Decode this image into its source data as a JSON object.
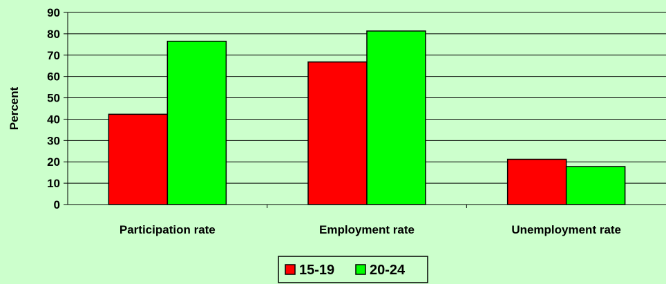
{
  "chart_data": {
    "type": "bar",
    "categories": [
      "Participation rate",
      "Employment rate",
      "Unemployment rate"
    ],
    "series": [
      {
        "name": "15-19",
        "color": "#ff0000",
        "values": [
          42.3,
          66.8,
          21.2
        ]
      },
      {
        "name": "20-24",
        "color": "#00ff00",
        "values": [
          76.5,
          81.3,
          17.8
        ]
      }
    ],
    "title": "",
    "xlabel": "",
    "ylabel": "Percent",
    "ylim": [
      0,
      90
    ],
    "yticks": [
      0,
      10,
      20,
      30,
      40,
      50,
      60,
      70,
      80,
      90
    ],
    "grid": true,
    "legend_position": "bottom",
    "background_color": "#ccffcc"
  }
}
